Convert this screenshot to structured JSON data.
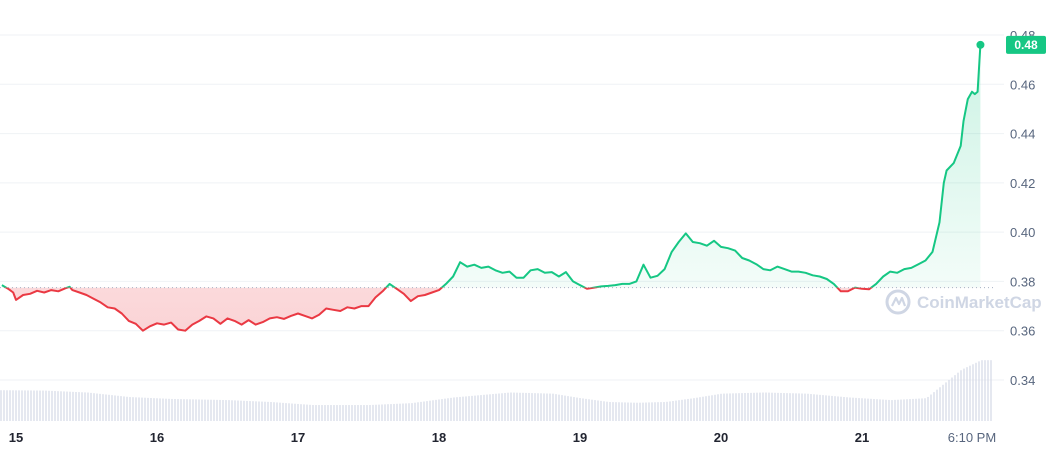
{
  "watermark": {
    "text": "CoinMarketCap"
  },
  "colors": {
    "up": "#16c784",
    "down": "#ea3943",
    "grid": "#eff2f5",
    "volume": "#cfd6e4",
    "baseline": "#a6b0c3"
  },
  "current_price_label": "0.48",
  "chart_data": {
    "type": "line",
    "title": "",
    "xlabel": "",
    "ylabel": "",
    "ylim": [
      0.325,
      0.49
    ],
    "y_ticks": [
      "0.48",
      "0.46",
      "0.44",
      "0.42",
      "0.40",
      "0.38",
      "0.36",
      "0.34"
    ],
    "y_tick_values": [
      0.48,
      0.46,
      0.44,
      0.42,
      0.4,
      0.38,
      0.36,
      0.34
    ],
    "x_ticks": [
      "15",
      "16",
      "17",
      "18",
      "19",
      "20",
      "21",
      "6:10 PM"
    ],
    "x_tick_days": [
      0,
      1,
      2,
      3,
      4,
      5,
      6,
      6.78
    ],
    "baseline": 0.3775,
    "series": [
      {
        "values": [
          [
            -0.1,
            0.3785
          ],
          [
            -0.05,
            0.3768
          ],
          [
            -0.02,
            0.3755
          ],
          [
            0.0,
            0.3725
          ],
          [
            0.05,
            0.3745
          ],
          [
            0.1,
            0.375
          ],
          [
            0.15,
            0.3762
          ],
          [
            0.2,
            0.3755
          ],
          [
            0.25,
            0.3765
          ],
          [
            0.3,
            0.376
          ],
          [
            0.35,
            0.3772
          ],
          [
            0.38,
            0.3778
          ],
          [
            0.4,
            0.3765
          ],
          [
            0.45,
            0.3755
          ],
          [
            0.5,
            0.3745
          ],
          [
            0.55,
            0.373
          ],
          [
            0.6,
            0.3715
          ],
          [
            0.65,
            0.3695
          ],
          [
            0.7,
            0.369
          ],
          [
            0.75,
            0.367
          ],
          [
            0.8,
            0.364
          ],
          [
            0.85,
            0.3628
          ],
          [
            0.9,
            0.36
          ],
          [
            0.95,
            0.3618
          ],
          [
            1.0,
            0.363
          ],
          [
            1.05,
            0.3625
          ],
          [
            1.1,
            0.3633
          ],
          [
            1.15,
            0.3605
          ],
          [
            1.2,
            0.36
          ],
          [
            1.25,
            0.3625
          ],
          [
            1.3,
            0.364
          ],
          [
            1.35,
            0.3658
          ],
          [
            1.4,
            0.365
          ],
          [
            1.45,
            0.3628
          ],
          [
            1.5,
            0.365
          ],
          [
            1.55,
            0.364
          ],
          [
            1.6,
            0.3625
          ],
          [
            1.65,
            0.3643
          ],
          [
            1.7,
            0.3625
          ],
          [
            1.75,
            0.3635
          ],
          [
            1.8,
            0.365
          ],
          [
            1.85,
            0.3655
          ],
          [
            1.9,
            0.3648
          ],
          [
            1.95,
            0.366
          ],
          [
            2.0,
            0.367
          ],
          [
            2.05,
            0.366
          ],
          [
            2.1,
            0.365
          ],
          [
            2.15,
            0.3665
          ],
          [
            2.2,
            0.369
          ],
          [
            2.25,
            0.3685
          ],
          [
            2.3,
            0.368
          ],
          [
            2.35,
            0.3695
          ],
          [
            2.4,
            0.369
          ],
          [
            2.45,
            0.37
          ],
          [
            2.5,
            0.37
          ],
          [
            2.55,
            0.3735
          ],
          [
            2.6,
            0.376
          ],
          [
            2.65,
            0.379
          ],
          [
            2.7,
            0.377
          ],
          [
            2.75,
            0.375
          ],
          [
            2.8,
            0.372
          ],
          [
            2.85,
            0.374
          ],
          [
            2.9,
            0.3745
          ],
          [
            2.95,
            0.3755
          ],
          [
            3.0,
            0.3765
          ],
          [
            3.05,
            0.379
          ],
          [
            3.1,
            0.382
          ],
          [
            3.15,
            0.3878
          ],
          [
            3.2,
            0.386
          ],
          [
            3.25,
            0.3868
          ],
          [
            3.3,
            0.3855
          ],
          [
            3.35,
            0.386
          ],
          [
            3.4,
            0.3845
          ],
          [
            3.45,
            0.3835
          ],
          [
            3.5,
            0.384
          ],
          [
            3.55,
            0.3815
          ],
          [
            3.6,
            0.3815
          ],
          [
            3.65,
            0.3845
          ],
          [
            3.7,
            0.385
          ],
          [
            3.75,
            0.3835
          ],
          [
            3.8,
            0.3838
          ],
          [
            3.85,
            0.382
          ],
          [
            3.9,
            0.3838
          ],
          [
            3.95,
            0.38
          ],
          [
            4.0,
            0.3785
          ],
          [
            4.05,
            0.377
          ],
          [
            4.1,
            0.3775
          ],
          [
            4.15,
            0.378
          ],
          [
            4.2,
            0.3782
          ],
          [
            4.25,
            0.3785
          ],
          [
            4.3,
            0.379
          ],
          [
            4.35,
            0.379
          ],
          [
            4.4,
            0.38
          ],
          [
            4.45,
            0.3868
          ],
          [
            4.5,
            0.3815
          ],
          [
            4.55,
            0.3823
          ],
          [
            4.6,
            0.385
          ],
          [
            4.65,
            0.392
          ],
          [
            4.7,
            0.396
          ],
          [
            4.75,
            0.3995
          ],
          [
            4.8,
            0.396
          ],
          [
            4.85,
            0.3955
          ],
          [
            4.9,
            0.3945
          ],
          [
            4.95,
            0.3965
          ],
          [
            5.0,
            0.394
          ],
          [
            5.05,
            0.3935
          ],
          [
            5.1,
            0.3925
          ],
          [
            5.15,
            0.3895
          ],
          [
            5.2,
            0.3885
          ],
          [
            5.25,
            0.387
          ],
          [
            5.3,
            0.385
          ],
          [
            5.35,
            0.3845
          ],
          [
            5.4,
            0.386
          ],
          [
            5.45,
            0.385
          ],
          [
            5.5,
            0.384
          ],
          [
            5.55,
            0.384
          ],
          [
            5.6,
            0.3835
          ],
          [
            5.65,
            0.3825
          ],
          [
            5.7,
            0.382
          ],
          [
            5.75,
            0.381
          ],
          [
            5.8,
            0.379
          ],
          [
            5.85,
            0.376
          ],
          [
            5.9,
            0.376
          ],
          [
            5.95,
            0.3775
          ],
          [
            6.0,
            0.377
          ],
          [
            6.05,
            0.3768
          ],
          [
            6.1,
            0.379
          ],
          [
            6.15,
            0.382
          ],
          [
            6.2,
            0.384
          ],
          [
            6.25,
            0.3835
          ],
          [
            6.3,
            0.385
          ],
          [
            6.35,
            0.3855
          ],
          [
            6.4,
            0.387
          ],
          [
            6.45,
            0.3885
          ],
          [
            6.5,
            0.392
          ],
          [
            6.55,
            0.404
          ],
          [
            6.58,
            0.42
          ],
          [
            6.6,
            0.425
          ],
          [
            6.65,
            0.428
          ],
          [
            6.7,
            0.435
          ],
          [
            6.72,
            0.445
          ],
          [
            6.75,
            0.454
          ],
          [
            6.78,
            0.457
          ],
          [
            6.8,
            0.456
          ],
          [
            6.82,
            0.457
          ],
          [
            6.84,
            0.476
          ]
        ]
      }
    ],
    "volume": [
      [
        -0.1,
        0.81
      ],
      [
        0.2,
        0.8
      ],
      [
        0.5,
        0.75
      ],
      [
        0.8,
        0.63
      ],
      [
        1.1,
        0.58
      ],
      [
        1.5,
        0.55
      ],
      [
        1.8,
        0.5
      ],
      [
        2.1,
        0.42
      ],
      [
        2.5,
        0.42
      ],
      [
        2.8,
        0.47
      ],
      [
        3.1,
        0.62
      ],
      [
        3.5,
        0.75
      ],
      [
        3.8,
        0.72
      ],
      [
        4.0,
        0.6
      ],
      [
        4.2,
        0.5
      ],
      [
        4.4,
        0.48
      ],
      [
        4.6,
        0.5
      ],
      [
        4.8,
        0.6
      ],
      [
        5.0,
        0.72
      ],
      [
        5.3,
        0.75
      ],
      [
        5.6,
        0.72
      ],
      [
        5.9,
        0.62
      ],
      [
        6.2,
        0.55
      ],
      [
        6.45,
        0.6
      ],
      [
        6.55,
        0.9
      ],
      [
        6.7,
        1.35
      ],
      [
        6.84,
        1.6
      ]
    ]
  }
}
